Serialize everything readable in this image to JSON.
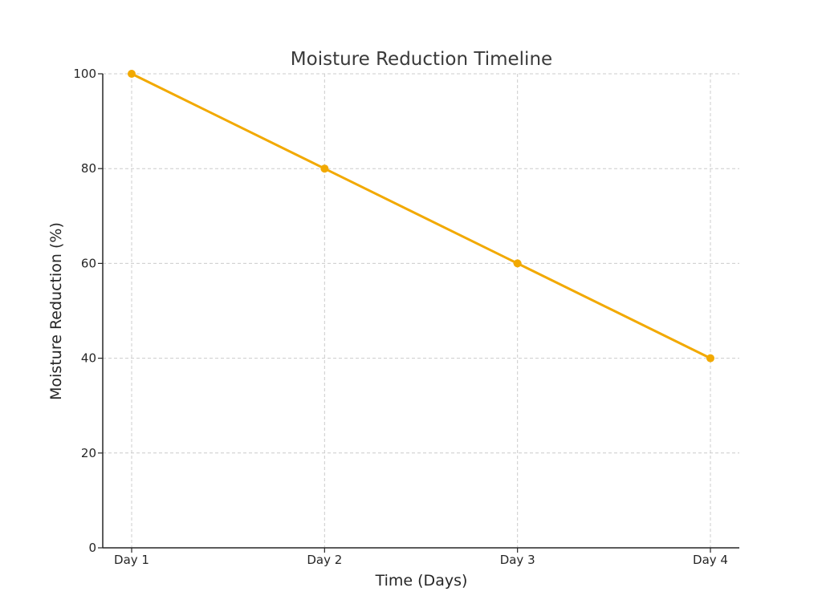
{
  "chart_data": {
    "type": "line",
    "title": "Moisture Reduction Timeline",
    "xlabel": "Time (Days)",
    "ylabel": "Moisture Reduction (%)",
    "categories": [
      "Day 1",
      "Day 2",
      "Day 3",
      "Day 4"
    ],
    "series": [
      {
        "values": [
          100,
          80,
          60,
          40
        ],
        "color": "#f2a900",
        "marker": "circle"
      }
    ],
    "ylim": [
      0,
      100
    ],
    "yticks": [
      0,
      20,
      40,
      60,
      80,
      100
    ],
    "grid": true,
    "legend": "none"
  }
}
